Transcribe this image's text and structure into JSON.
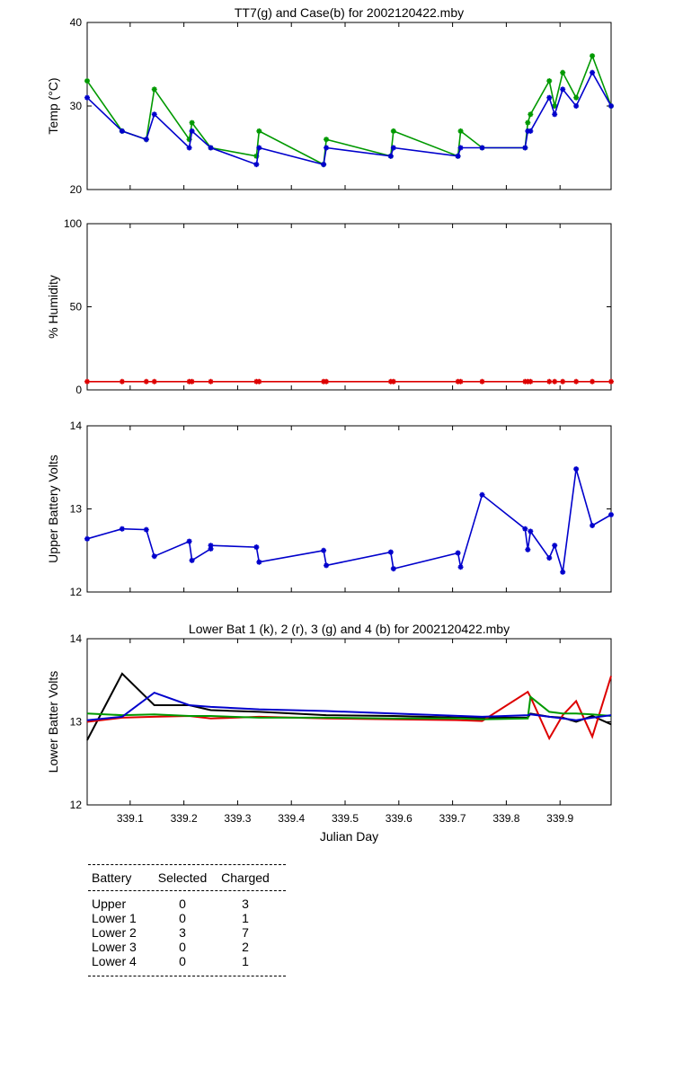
{
  "chart_data": [
    {
      "type": "line",
      "title": "TT7(g) and Case(b) for 2002120422.mby",
      "xlabel": "",
      "ylabel": "Temp  (°C)",
      "xlim": [
        339.02,
        339.995
      ],
      "ylim": [
        20,
        40
      ],
      "yticks": [
        20,
        30,
        40
      ],
      "x": [
        339.02,
        339.085,
        339.13,
        339.145,
        339.21,
        339.215,
        339.25,
        339.335,
        339.34,
        339.46,
        339.465,
        339.585,
        339.59,
        339.71,
        339.715,
        339.755,
        339.835,
        339.84,
        339.845,
        339.88,
        339.89,
        339.905,
        339.93,
        339.96,
        339.995
      ],
      "series": [
        {
          "name": "TT7",
          "color": "#009900",
          "values": [
            33,
            27,
            26,
            32,
            26,
            28,
            25,
            24,
            27,
            23,
            26,
            24,
            27,
            24,
            27,
            25,
            25,
            28,
            29,
            33,
            30,
            34,
            31,
            36,
            30
          ]
        },
        {
          "name": "Case",
          "color": "#0000cc",
          "values": [
            31,
            27,
            26,
            29,
            25,
            27,
            25,
            23,
            25,
            23,
            25,
            24,
            25,
            24,
            25,
            25,
            25,
            27,
            27,
            31,
            29,
            32,
            30,
            34,
            30
          ]
        }
      ]
    },
    {
      "type": "line",
      "title": "",
      "xlabel": "",
      "ylabel": "% Humidity",
      "xlim": [
        339.02,
        339.995
      ],
      "ylim": [
        0,
        100
      ],
      "yticks": [
        0,
        50,
        100
      ],
      "x": [
        339.02,
        339.085,
        339.13,
        339.145,
        339.21,
        339.215,
        339.25,
        339.335,
        339.34,
        339.46,
        339.465,
        339.585,
        339.59,
        339.71,
        339.715,
        339.755,
        339.835,
        339.84,
        339.845,
        339.88,
        339.89,
        339.905,
        339.93,
        339.96,
        339.995
      ],
      "series": [
        {
          "name": "Humidity",
          "color": "#dd0000",
          "values": [
            5,
            5,
            5,
            5,
            5,
            5,
            5,
            5,
            5,
            5,
            5,
            5,
            5,
            5,
            5,
            5,
            5,
            5,
            5,
            5,
            5,
            5,
            5,
            5,
            5
          ]
        }
      ]
    },
    {
      "type": "line",
      "title": "",
      "xlabel": "",
      "ylabel": "Upper Battery Volts",
      "xlim": [
        339.02,
        339.995
      ],
      "ylim": [
        12,
        14
      ],
      "yticks": [
        12,
        13,
        14
      ],
      "x": [
        339.02,
        339.085,
        339.13,
        339.145,
        339.21,
        339.215,
        339.25,
        339.25,
        339.335,
        339.34,
        339.46,
        339.465,
        339.585,
        339.59,
        339.71,
        339.715,
        339.755,
        339.835,
        339.84,
        339.845,
        339.88,
        339.89,
        339.905,
        339.93,
        339.96,
        339.995
      ],
      "series": [
        {
          "name": "Upper",
          "color": "#0000cc",
          "values": [
            12.64,
            12.76,
            12.75,
            12.43,
            12.61,
            12.38,
            12.52,
            12.56,
            12.54,
            12.36,
            12.5,
            12.32,
            12.48,
            12.28,
            12.47,
            12.3,
            13.17,
            12.76,
            12.51,
            12.73,
            12.41,
            12.56,
            12.24,
            13.48,
            12.8,
            12.93
          ]
        }
      ]
    },
    {
      "type": "line",
      "title": "Lower Bat 1 (k), 2 (r), 3 (g) and 4 (b) for 2002120422.mby",
      "xlabel": "Julian Day",
      "ylabel": "Lower Batter Volts",
      "xlim": [
        339.02,
        339.995
      ],
      "ylim": [
        12,
        14
      ],
      "yticks": [
        12,
        13,
        14
      ],
      "xticks": [
        339.1,
        339.2,
        339.3,
        339.4,
        339.5,
        339.6,
        339.7,
        339.8,
        339.9
      ],
      "xticklabels": [
        "339.1",
        "339.2",
        "339.3",
        "339.4",
        "339.5",
        "339.6",
        "339.7",
        "339.8",
        "339.9"
      ],
      "x": [
        339.02,
        339.085,
        339.145,
        339.21,
        339.25,
        339.34,
        339.465,
        339.59,
        339.715,
        339.755,
        339.84,
        339.845,
        339.88,
        339.905,
        339.93,
        339.96,
        339.995
      ],
      "series": [
        {
          "name": "Lower 1",
          "color": "#000000",
          "values": [
            12.78,
            13.58,
            13.2,
            13.2,
            13.14,
            13.12,
            13.08,
            13.07,
            13.05,
            13.05,
            13.05,
            13.1,
            13.06,
            13.05,
            13.0,
            13.07,
            12.97
          ]
        },
        {
          "name": "Lower 2",
          "color": "#dd0000",
          "values": [
            13.0,
            13.05,
            13.06,
            13.07,
            13.04,
            13.06,
            13.04,
            13.03,
            13.02,
            13.01,
            13.36,
            13.3,
            12.8,
            13.08,
            13.25,
            12.82,
            13.55
          ]
        },
        {
          "name": "Lower 3",
          "color": "#009900",
          "values": [
            13.1,
            13.08,
            13.09,
            13.07,
            13.07,
            13.05,
            13.05,
            13.04,
            13.04,
            13.03,
            13.04,
            13.3,
            13.12,
            13.1,
            13.1,
            13.09,
            13.07
          ]
        },
        {
          "name": "Lower 4",
          "color": "#0000cc",
          "values": [
            13.02,
            13.06,
            13.35,
            13.2,
            13.18,
            13.15,
            13.13,
            13.1,
            13.07,
            13.06,
            13.08,
            13.09,
            13.06,
            13.04,
            13.02,
            13.05,
            13.08
          ]
        }
      ]
    }
  ],
  "summary_table": {
    "headers": [
      "Battery",
      "Selected",
      "Charged"
    ],
    "rows": [
      [
        "Upper",
        "0",
        "3"
      ],
      [
        "Lower 1",
        "0",
        "1"
      ],
      [
        "Lower 2",
        "3",
        "7"
      ],
      [
        "Lower 3",
        "0",
        "2"
      ],
      [
        "Lower 4",
        "0",
        "1"
      ]
    ]
  }
}
